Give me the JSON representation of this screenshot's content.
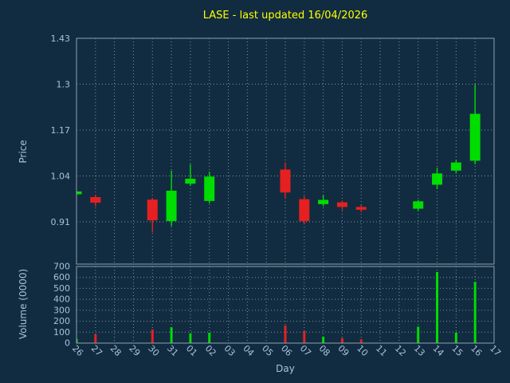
{
  "colors": {
    "background": "#112c40",
    "title": "#ffff00",
    "axis_label": "#a7c1da",
    "tick_label": "#a7c1da",
    "grid": "#c8d6e4",
    "spine": "#8fa0b0",
    "up": "#00dd00",
    "down": "#e62020"
  },
  "chart_data": [
    {
      "type": "candlestick",
      "title": "LASE - last updated 16/04/2026",
      "xlabel": "Day",
      "ylabel": "Price",
      "categories": [
        "26",
        "27",
        "28",
        "29",
        "30",
        "31",
        "01",
        "02",
        "03",
        "04",
        "05",
        "06",
        "07",
        "08",
        "09",
        "10",
        "11",
        "12",
        "13",
        "14",
        "15",
        "16",
        "17"
      ],
      "ytick_labels": [
        "0.91",
        "1.04",
        "1.17",
        "1.3",
        "1.43"
      ],
      "ylim": [
        0.79,
        1.43
      ],
      "grid": true,
      "candles": [
        {
          "day": "26",
          "open": 0.988,
          "high": 0.997,
          "low": 0.984,
          "close": 0.996
        },
        {
          "day": "27",
          "open": 0.98,
          "high": 0.986,
          "low": 0.954,
          "close": 0.964
        },
        {
          "day": "30",
          "open": 0.973,
          "high": 0.978,
          "low": 0.88,
          "close": 0.914
        },
        {
          "day": "31",
          "open": 0.912,
          "high": 1.055,
          "low": 0.898,
          "close": 0.998
        },
        {
          "day": "01",
          "open": 1.018,
          "high": 1.073,
          "low": 1.012,
          "close": 1.032
        },
        {
          "day": "02",
          "open": 0.969,
          "high": 1.052,
          "low": 0.962,
          "close": 1.038
        },
        {
          "day": "06",
          "open": 1.058,
          "high": 1.078,
          "low": 0.975,
          "close": 0.993
        },
        {
          "day": "07",
          "open": 0.974,
          "high": 0.982,
          "low": 0.903,
          "close": 0.912
        },
        {
          "day": "08",
          "open": 0.96,
          "high": 0.985,
          "low": 0.954,
          "close": 0.972
        },
        {
          "day": "09",
          "open": 0.965,
          "high": 0.97,
          "low": 0.943,
          "close": 0.952
        },
        {
          "day": "10",
          "open": 0.952,
          "high": 0.957,
          "low": 0.937,
          "close": 0.944
        },
        {
          "day": "13",
          "open": 0.947,
          "high": 0.972,
          "low": 0.942,
          "close": 0.968
        },
        {
          "day": "14",
          "open": 1.015,
          "high": 1.063,
          "low": 1.003,
          "close": 1.047
        },
        {
          "day": "15",
          "open": 1.055,
          "high": 1.084,
          "low": 1.047,
          "close": 1.078
        },
        {
          "day": "16",
          "open": 1.083,
          "high": 1.3,
          "low": 1.073,
          "close": 1.216
        }
      ]
    },
    {
      "type": "bar",
      "ylabel": "Volume (0000)",
      "ytick_labels": [
        "0",
        "100",
        "200",
        "300",
        "400",
        "500",
        "600",
        "700"
      ],
      "ylim": [
        0,
        700
      ],
      "grid": true,
      "bars": [
        {
          "day": "26",
          "value": 40,
          "direction": "up"
        },
        {
          "day": "27",
          "value": 80,
          "direction": "down"
        },
        {
          "day": "30",
          "value": 125,
          "direction": "down"
        },
        {
          "day": "31",
          "value": 145,
          "direction": "up"
        },
        {
          "day": "01",
          "value": 90,
          "direction": "up"
        },
        {
          "day": "02",
          "value": 95,
          "direction": "up"
        },
        {
          "day": "06",
          "value": 160,
          "direction": "down"
        },
        {
          "day": "07",
          "value": 110,
          "direction": "down"
        },
        {
          "day": "08",
          "value": 60,
          "direction": "up"
        },
        {
          "day": "09",
          "value": 45,
          "direction": "down"
        },
        {
          "day": "10",
          "value": 35,
          "direction": "down"
        },
        {
          "day": "13",
          "value": 150,
          "direction": "up"
        },
        {
          "day": "14",
          "value": 650,
          "direction": "up"
        },
        {
          "day": "15",
          "value": 95,
          "direction": "up"
        },
        {
          "day": "16",
          "value": 560,
          "direction": "up"
        }
      ]
    }
  ]
}
